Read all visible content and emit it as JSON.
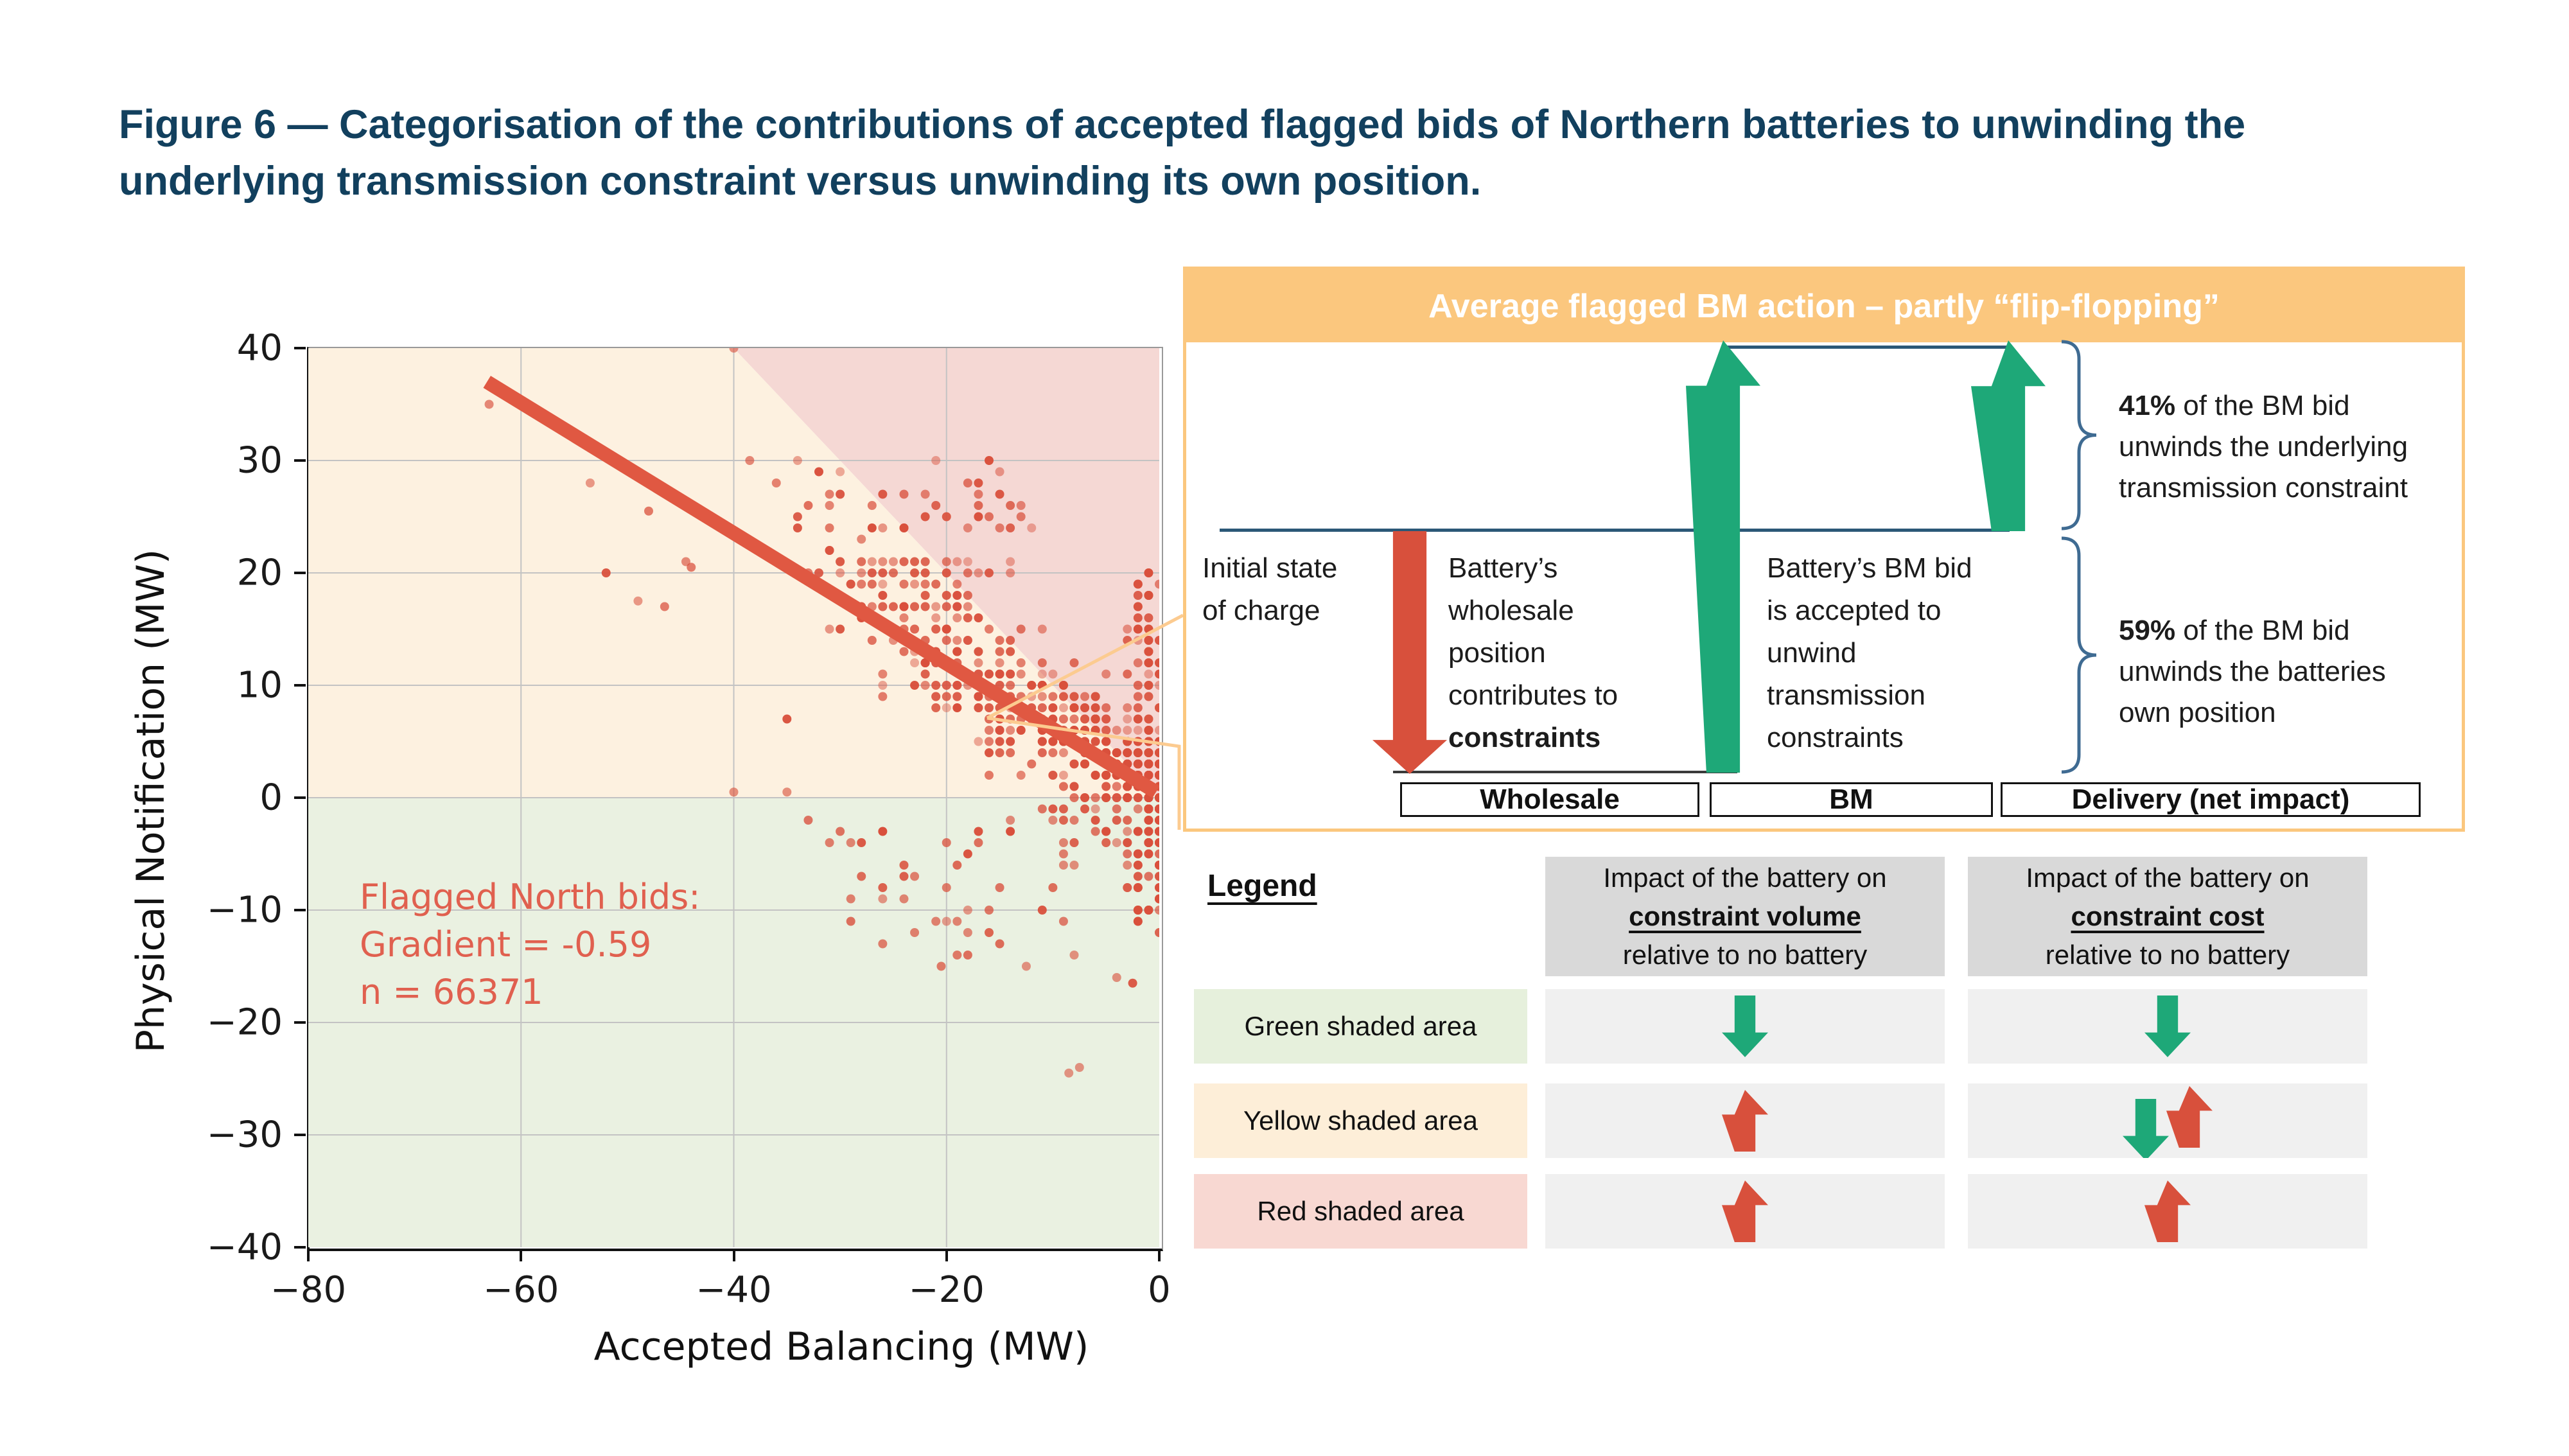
{
  "title": {
    "text": "Figure 6 — Categorisation of the contributions of accepted flagged bids of Northern batteries to unwinding the underlying transmission constraint versus unwinding its own position."
  },
  "colors": {
    "title_navy": "#12405e",
    "grid_gray": "#c3c3c3",
    "plot_green_bg": "#eaf1e1",
    "plot_yellow_bg": "#fdf1e0",
    "plot_red_bg": "#f5d8d4",
    "scatter_red": "#d9503c",
    "trend_red": "#e05842",
    "annotation_red": "#e0604f",
    "panel_orange": "#fbc77e",
    "callout_orange": "#fccb90",
    "arrow_green": "#1ea878",
    "arrow_red": "#d8503c",
    "baseline_navy": "#2b5877",
    "brace_blue": "#3f6b92",
    "header_gray": "#d9d9d9",
    "cell_gray": "#f0f0f0",
    "legend_green_bg": "#e6f0dc",
    "legend_yellow_bg": "#fdeed8",
    "legend_red_bg": "#f8d8d2"
  },
  "chart_data": {
    "type": "scatter",
    "xlabel": "Accepted Balancing (MW)",
    "ylabel": "Physical Notification (MW)",
    "xlim": [
      -80,
      0
    ],
    "ylim": [
      -40,
      40
    ],
    "xticks": [
      "−80",
      "−60",
      "−40",
      "−20",
      "0"
    ],
    "xtick_values": [
      -80,
      -60,
      -40,
      -20,
      0
    ],
    "yticks": [
      "40",
      "30",
      "20",
      "10",
      "0",
      "−10",
      "−20",
      "−30",
      "−40"
    ],
    "ytick_values": [
      40,
      30,
      20,
      10,
      0,
      -10,
      -20,
      -30,
      -40
    ],
    "grid": true,
    "regions": [
      {
        "name": "green shaded area",
        "desc": "Physical Notification below 0",
        "color": "#eaf1e1"
      },
      {
        "name": "yellow shaded area",
        "desc": "PN above 0 and below line PN = −AB",
        "color": "#fdf1e0"
      },
      {
        "name": "red shaded area",
        "desc": "PN above line PN = −AB (boundary from (−40,40) to (0,0))",
        "color": "#f5d8d4"
      }
    ],
    "trend": {
      "x1": -63.2,
      "y1": 37.0,
      "x2": -0.3,
      "y2": 0.5,
      "gradient": -0.59,
      "n": 66371
    },
    "annotation": {
      "lines": [
        "Flagged North bids:",
        "Gradient = -0.59",
        "n = 66371"
      ]
    },
    "callout_anchor": {
      "x": -16.2,
      "y": 6.8
    },
    "scatter": {
      "seed": 20240613,
      "point_radius": 7,
      "grid_snap": 1,
      "clusters": [
        {
          "kind": "band",
          "n": 560,
          "xMax": 36,
          "pow": 2.0,
          "slope": -0.62,
          "intercept": 1.0,
          "spreadBase": 4.0,
          "spreadGrow": 0.16,
          "downTailP": 0.22,
          "downTailMax": 10,
          "yMin": -16,
          "yMax": 30
        },
        {
          "kind": "uniform",
          "n": 115,
          "xMin": -3,
          "xMax": 0,
          "yMin": -12,
          "yMax": 20
        },
        {
          "kind": "uniform",
          "n": 55,
          "xMin": -34,
          "xMax": -12,
          "yMin": 18,
          "yMax": 30
        },
        {
          "kind": "uniform",
          "n": 42,
          "xMin": -30,
          "xMax": -2,
          "yMin": -14,
          "yMax": -1
        }
      ],
      "outliers": [
        [
          -63,
          35
        ],
        [
          -53.5,
          28
        ],
        [
          -48,
          25.5
        ],
        [
          -44.5,
          21
        ],
        [
          -46.5,
          17
        ],
        [
          -40,
          40
        ],
        [
          -44,
          20.5
        ],
        [
          -38.5,
          30
        ],
        [
          -36,
          28
        ],
        [
          -33,
          26
        ],
        [
          -8.5,
          -24.5
        ],
        [
          -7.5,
          -24
        ],
        [
          -20.5,
          -15
        ],
        [
          -12.5,
          -15
        ],
        [
          -4,
          -16
        ],
        [
          -2.5,
          -16.5
        ],
        [
          -35,
          7
        ],
        [
          -40,
          0.5
        ],
        [
          -35,
          0.5
        ],
        [
          -33,
          -2
        ],
        [
          -31,
          -4
        ],
        [
          -28,
          -7
        ],
        [
          -26,
          -9
        ],
        [
          -16,
          -12
        ],
        [
          -23,
          -12
        ],
        [
          -52,
          20
        ],
        [
          -49,
          17.5
        ]
      ]
    }
  },
  "panel": {
    "header": "Average flagged BM action – partly “flip-flopping”",
    "initial_state_lines": [
      "Initial state",
      "of charge"
    ],
    "wholesale_label_lines": [
      "Battery’s",
      "wholesale",
      "position",
      "contributes to"
    ],
    "wholesale_label_bold": "constraints",
    "bm_label_lines": [
      "Battery’s BM bid",
      "is accepted to",
      "unwind",
      "transmission",
      "constraints"
    ],
    "pct41": {
      "bold": "41%",
      "rest": " of the BM bid",
      "line2": "unwinds the underlying",
      "line3": "transmission constraint"
    },
    "pct59": {
      "bold": "59%",
      "rest": " of the BM bid",
      "line2": "unwinds the batteries",
      "line3": "own position"
    },
    "columns": [
      "Wholesale",
      "BM",
      "Delivery (net impact)"
    ]
  },
  "legend": {
    "title": "Legend",
    "col1": {
      "line1": "Impact of the battery on",
      "line2": "constraint volume",
      "line3": "relative to no battery"
    },
    "col2": {
      "line1": "Impact of the battery on",
      "line2": "constraint cost",
      "line3": "relative to no battery"
    },
    "rows": [
      {
        "label": "Green shaded area",
        "bg": "#e6f0dc",
        "volume": [
          "green-down"
        ],
        "cost": [
          "green-down"
        ]
      },
      {
        "label": "Yellow shaded area",
        "bg": "#fdeed8",
        "volume": [
          "red-up"
        ],
        "cost": [
          "green-down",
          "red-up"
        ]
      },
      {
        "label": "Red shaded area",
        "bg": "#f8d8d2",
        "volume": [
          "red-up"
        ],
        "cost": [
          "red-up"
        ]
      }
    ]
  }
}
